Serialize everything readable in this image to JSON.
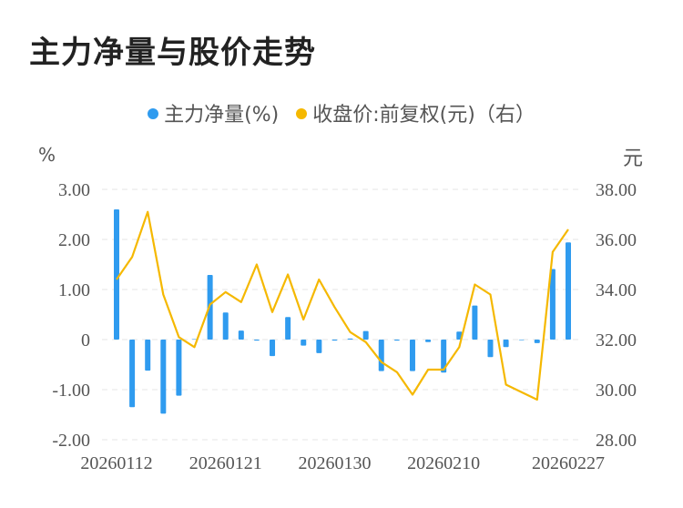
{
  "title": "主力净量与股价走势",
  "legend": {
    "series1": "主力净量(%)",
    "series2": "收盘价:前复权(元)（右）"
  },
  "units": {
    "left": "%",
    "right": "元"
  },
  "colors": {
    "bar": "#2f9bef",
    "line": "#f5b800",
    "grid": "#e6e6e6"
  },
  "chart_data": {
    "type": "bar+line",
    "title": "主力净量与股价走势",
    "x_labels_shown": [
      "20260112",
      "20260121",
      "20260130",
      "20260210",
      "20260227"
    ],
    "y_left": {
      "ticks": [
        "3.00",
        "2.00",
        "1.00",
        "0",
        "-1.00",
        "-2.00"
      ],
      "range": [
        -2,
        3
      ]
    },
    "y_right": {
      "ticks": [
        "38.00",
        "36.00",
        "34.00",
        "32.00",
        "30.00",
        "28.00"
      ],
      "range": [
        28,
        38
      ]
    },
    "series": [
      {
        "name": "主力净量(%)",
        "type": "bar",
        "axis": "left",
        "values": [
          2.6,
          -1.35,
          -0.62,
          -1.48,
          -1.12,
          0.01,
          1.29,
          0.54,
          0.18,
          -0.02,
          -0.33,
          0.45,
          -0.12,
          -0.27,
          -0.02,
          0.02,
          0.17,
          -0.63,
          -0.02,
          -0.63,
          -0.05,
          -0.66,
          0.16,
          0.68,
          -0.35,
          -0.15,
          -0.01,
          -0.07,
          1.41,
          1.94
        ]
      },
      {
        "name": "收盘价:前复权(元)（右）",
        "type": "line",
        "axis": "right",
        "values": [
          34.4,
          35.3,
          37.1,
          33.8,
          32.1,
          31.7,
          33.4,
          33.9,
          33.5,
          35.0,
          33.1,
          34.6,
          32.8,
          34.4,
          33.3,
          32.3,
          31.9,
          31.1,
          30.7,
          29.8,
          30.8,
          30.8,
          31.7,
          34.2,
          33.8,
          30.2,
          29.9,
          29.6,
          35.5,
          36.4
        ]
      }
    ]
  }
}
